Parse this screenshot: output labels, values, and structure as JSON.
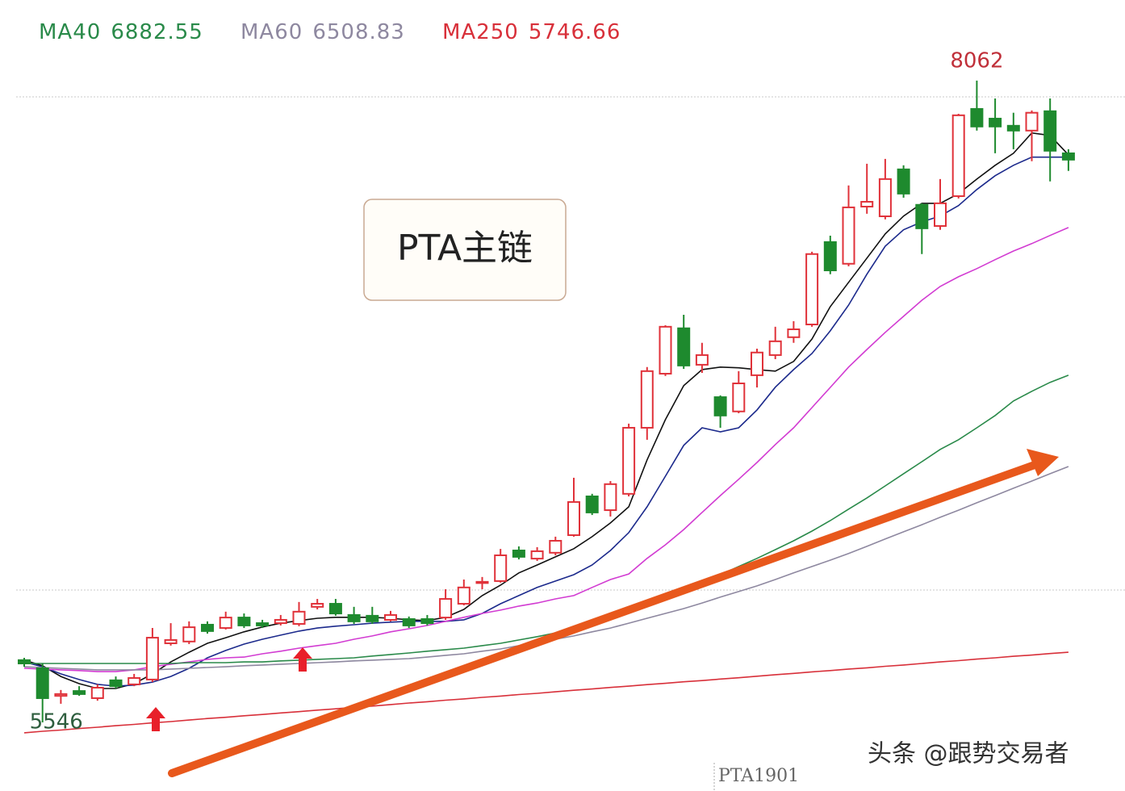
{
  "chart_data": {
    "type": "candlestick",
    "ylim": [
      5277,
      8378
    ],
    "up_color": "#e0323a",
    "down_color": "#1e8a2e",
    "open": [
      5790,
      5758,
      5650,
      5669,
      5641,
      5711,
      5695,
      5714,
      5856,
      5863,
      5929,
      5916,
      5957,
      5935,
      5935,
      5932,
      5999,
      6011,
      5967,
      5964,
      5948,
      5951,
      5951,
      5957,
      6011,
      6094,
      6100,
      6220,
      6188,
      6211,
      6280,
      6432,
      6378,
      6442,
      6701,
      6913,
      7091,
      6948,
      6821,
      6765,
      6907,
      6986,
      7056,
      7106,
      7429,
      7344,
      7568,
      7530,
      7714,
      7575,
      7492,
      7609,
      7951,
      7913,
      7885,
      7866,
      7942,
      7777
    ],
    "high": [
      5799,
      5777,
      5673,
      5688,
      5695,
      5726,
      5736,
      5916,
      5935,
      5942,
      5942,
      5980,
      5973,
      5948,
      5967,
      6018,
      6030,
      6030,
      5999,
      5999,
      5983,
      5961,
      5967,
      6068,
      6106,
      6116,
      6226,
      6236,
      6233,
      6274,
      6505,
      6442,
      6492,
      6717,
      6939,
      7103,
      7144,
      7034,
      6828,
      6923,
      7011,
      7097,
      7119,
      7391,
      7454,
      7651,
      7736,
      7755,
      7730,
      7581,
      7676,
      7932,
      8062,
      7992,
      7936,
      7945,
      7992,
      7793
    ],
    "low": [
      5764,
      5546,
      5619,
      5650,
      5631,
      5679,
      5688,
      5704,
      5847,
      5853,
      5894,
      5910,
      5916,
      5916,
      5926,
      5923,
      5989,
      5964,
      5932,
      5932,
      5942,
      5916,
      5926,
      5948,
      6005,
      6068,
      6094,
      6185,
      6179,
      6201,
      6274,
      6359,
      6353,
      6432,
      6654,
      6904,
      6932,
      6916,
      6701,
      6758,
      6859,
      6970,
      7034,
      7097,
      7303,
      7334,
      7540,
      7518,
      7603,
      7382,
      7477,
      7600,
      7866,
      7777,
      7793,
      7746,
      7667,
      7708
    ],
    "close": [
      5777,
      5641,
      5657,
      5657,
      5682,
      5688,
      5720,
      5878,
      5869,
      5919,
      5904,
      5957,
      5926,
      5926,
      5948,
      5980,
      6011,
      5973,
      5942,
      5942,
      5967,
      5926,
      5935,
      6030,
      6075,
      6097,
      6201,
      6195,
      6217,
      6258,
      6410,
      6369,
      6480,
      6701,
      6923,
      7097,
      6945,
      6986,
      6749,
      6875,
      6996,
      7040,
      7087,
      7382,
      7318,
      7565,
      7587,
      7676,
      7619,
      7483,
      7581,
      7926,
      7882,
      7882,
      7866,
      7936,
      7787,
      7752
    ],
    "series": [
      {
        "color": "#111111",
        "values": [
          5790,
          5768,
          5726,
          5698,
          5679,
          5679,
          5698,
          5736,
          5783,
          5821,
          5856,
          5878,
          5901,
          5920,
          5935,
          5945,
          5954,
          5958,
          5958,
          5958,
          5954,
          5948,
          5945,
          5958,
          5989,
          6043,
          6084,
          6132,
          6163,
          6195,
          6227,
          6274,
          6328,
          6391,
          6575,
          6733,
          6866,
          6929,
          6939,
          6936,
          6929,
          6923,
          6961,
          7049,
          7176,
          7271,
          7366,
          7461,
          7531,
          7581,
          7581,
          7619,
          7676,
          7730,
          7777,
          7857,
          7847,
          7771
        ]
      },
      {
        "color": "#1c2a8c",
        "values": [
          5783,
          5764,
          5736,
          5714,
          5695,
          5688,
          5692,
          5704,
          5726,
          5758,
          5799,
          5828,
          5853,
          5872,
          5888,
          5904,
          5916,
          5923,
          5929,
          5935,
          5939,
          5942,
          5942,
          5942,
          5948,
          5973,
          6011,
          6043,
          6075,
          6100,
          6125,
          6163,
          6220,
          6290,
          6391,
          6511,
          6632,
          6701,
          6685,
          6701,
          6771,
          6860,
          6929,
          6992,
          7081,
          7182,
          7303,
          7413,
          7477,
          7508,
          7531,
          7572,
          7635,
          7689,
          7730,
          7762,
          7762,
          7762
        ]
      },
      {
        "color": "#d23cd2",
        "values": [
          5758,
          5755,
          5752,
          5749,
          5745,
          5745,
          5752,
          5764,
          5774,
          5783,
          5793,
          5799,
          5802,
          5815,
          5825,
          5837,
          5847,
          5856,
          5872,
          5885,
          5901,
          5913,
          5926,
          5942,
          5958,
          5973,
          5986,
          6002,
          6014,
          6030,
          6043,
          6075,
          6106,
          6128,
          6189,
          6242,
          6302,
          6369,
          6435,
          6499,
          6565,
          6635,
          6701,
          6780,
          6859,
          6939,
          7008,
          7075,
          7138,
          7201,
          7255,
          7293,
          7325,
          7360,
          7394,
          7423,
          7455,
          7486
        ]
      },
      {
        "name": "MA40",
        "legend_value": 6882.55,
        "color": "#2a8a4a",
        "values": [
          5777,
          5777,
          5777,
          5777,
          5777,
          5777,
          5777,
          5777,
          5777,
          5780,
          5780,
          5780,
          5783,
          5783,
          5787,
          5790,
          5793,
          5796,
          5799,
          5806,
          5812,
          5818,
          5825,
          5831,
          5837,
          5847,
          5856,
          5869,
          5882,
          5897,
          5913,
          5932,
          5954,
          5980,
          6005,
          6033,
          6062,
          6094,
          6125,
          6157,
          6189,
          6223,
          6258,
          6296,
          6337,
          6382,
          6426,
          6473,
          6521,
          6568,
          6616,
          6654,
          6701,
          6749,
          6806,
          6844,
          6879,
          6907
        ]
      },
      {
        "name": "MA60",
        "legend_value": 6508.83,
        "color": "#8e88a0",
        "values": [
          5764,
          5761,
          5758,
          5755,
          5752,
          5752,
          5752,
          5752,
          5755,
          5758,
          5761,
          5764,
          5768,
          5771,
          5774,
          5777,
          5780,
          5783,
          5787,
          5790,
          5793,
          5796,
          5802,
          5809,
          5815,
          5825,
          5834,
          5847,
          5859,
          5872,
          5885,
          5901,
          5916,
          5935,
          5954,
          5973,
          5992,
          6014,
          6037,
          6059,
          6081,
          6106,
          6132,
          6157,
          6182,
          6208,
          6236,
          6265,
          6293,
          6321,
          6350,
          6378,
          6407,
          6435,
          6464,
          6492,
          6521,
          6549
        ]
      },
      {
        "name": "MA250",
        "legend_value": 5746.66,
        "color": "#d8303a",
        "values": [
          5505,
          5511,
          5516,
          5522,
          5527,
          5533,
          5538,
          5544,
          5549,
          5555,
          5561,
          5566,
          5572,
          5577,
          5583,
          5588,
          5594,
          5599,
          5605,
          5610,
          5616,
          5622,
          5627,
          5633,
          5638,
          5644,
          5649,
          5655,
          5660,
          5666,
          5672,
          5677,
          5683,
          5688,
          5694,
          5699,
          5705,
          5710,
          5716,
          5721,
          5727,
          5733,
          5738,
          5744,
          5749,
          5755,
          5760,
          5766,
          5771,
          5777,
          5783,
          5788,
          5794,
          5799,
          5805,
          5810,
          5816,
          5821
        ]
      }
    ],
    "high_label": 8062,
    "low_label": 5546,
    "annotation": "PTA主链",
    "contract": "PTA1901",
    "watermark": "头条 @跟势交易者"
  }
}
